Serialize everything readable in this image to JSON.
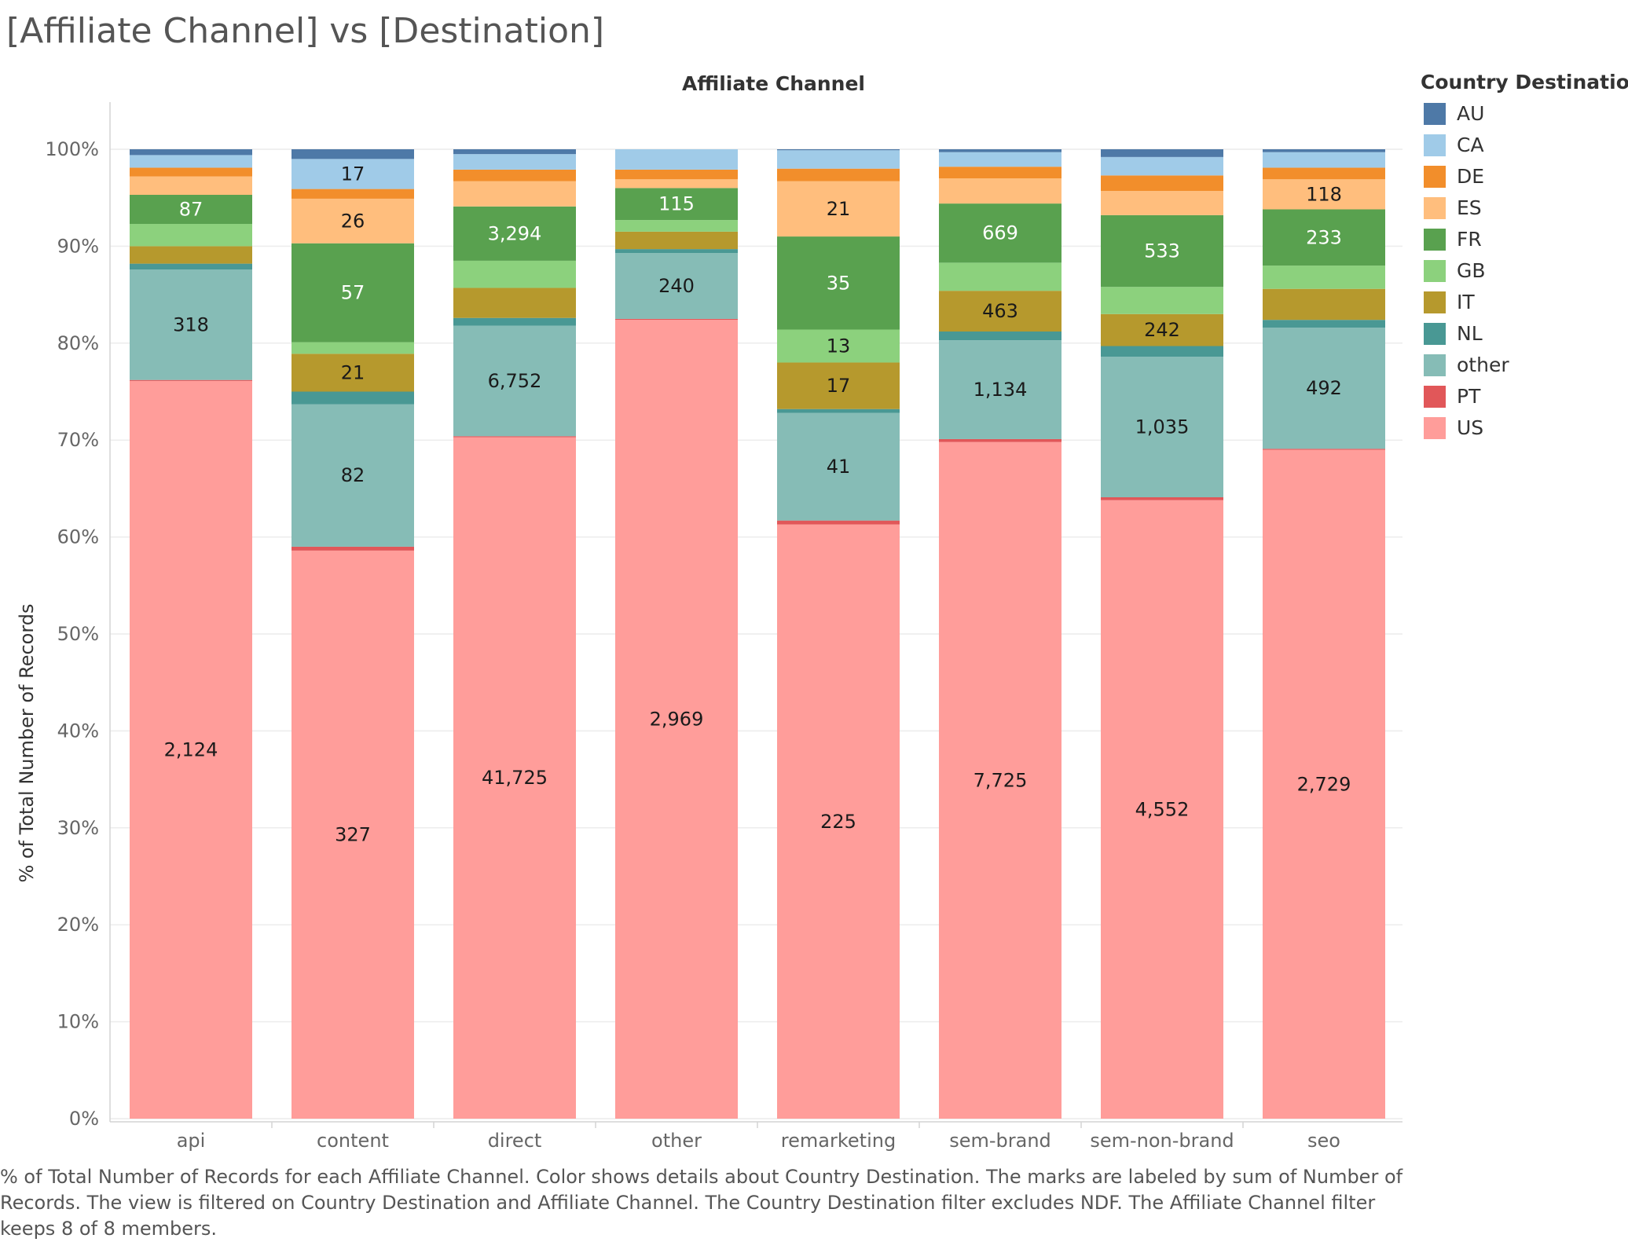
{
  "title": "[Affiliate Channel] vs [Destination]",
  "column_header": "Affiliate Channel",
  "legend": {
    "title": "Country Destination",
    "items": [
      {
        "label": "AU",
        "color": "#4e79a7"
      },
      {
        "label": "CA",
        "color": "#a0cbe8"
      },
      {
        "label": "DE",
        "color": "#f28e2b"
      },
      {
        "label": "ES",
        "color": "#ffbe7d"
      },
      {
        "label": "FR",
        "color": "#59a14f"
      },
      {
        "label": "GB",
        "color": "#8cd17d"
      },
      {
        "label": "IT",
        "color": "#b6992d"
      },
      {
        "label": "NL",
        "color": "#499894"
      },
      {
        "label": "other",
        "color": "#86bcb6"
      },
      {
        "label": "PT",
        "color": "#e15759"
      },
      {
        "label": "US",
        "color": "#ff9d9a"
      }
    ]
  },
  "caption": "% of Total Number of Records for each Affiliate Channel.  Color shows details about Country Destination.  The marks are labeled by sum of Number of Records. The view is filtered on Country Destination and Affiliate Channel. The Country Destination filter excludes NDF. The Affiliate Channel filter keeps 8 of 8 members.",
  "chart_data": {
    "type": "bar",
    "stacked": true,
    "normalized": true,
    "ylabel": "% of Total Number of Records",
    "xlabel": "",
    "ylim": [
      0,
      100
    ],
    "yticks": [
      "0%",
      "10%",
      "20%",
      "30%",
      "40%",
      "50%",
      "60%",
      "70%",
      "80%",
      "90%",
      "100%"
    ],
    "grid": true,
    "legend_position": "right",
    "categories": [
      "api",
      "content",
      "direct",
      "other",
      "remarketing",
      "sem-brand",
      "sem-non-brand",
      "seo"
    ],
    "series": [
      {
        "name": "US",
        "percent": [
          76.1,
          58.6,
          70.3,
          82.4,
          61.3,
          69.8,
          63.8,
          69.0
        ],
        "labels": [
          "2,124",
          "327",
          "41,725",
          "2,969",
          "225",
          "7,725",
          "4,552",
          "2,729"
        ]
      },
      {
        "name": "PT",
        "percent": [
          0.1,
          0.4,
          0.1,
          0.1,
          0.4,
          0.3,
          0.3,
          0.1
        ],
        "labels": [
          "",
          "",
          "",
          "",
          "",
          "",
          "",
          ""
        ]
      },
      {
        "name": "other",
        "percent": [
          11.4,
          14.7,
          11.4,
          6.8,
          11.1,
          10.2,
          14.5,
          12.5
        ],
        "labels": [
          "318",
          "82",
          "6,752",
          "240",
          "41",
          "1,134",
          "1,035",
          "492"
        ]
      },
      {
        "name": "NL",
        "percent": [
          0.6,
          1.3,
          0.8,
          0.4,
          0.4,
          0.9,
          1.1,
          0.8
        ],
        "labels": [
          "",
          "",
          "",
          "",
          "",
          "",
          "",
          ""
        ]
      },
      {
        "name": "IT",
        "percent": [
          1.8,
          3.9,
          3.1,
          1.8,
          4.8,
          4.2,
          3.3,
          3.2
        ],
        "labels": [
          "",
          "21",
          "",
          "",
          "17",
          "463",
          "242",
          ""
        ]
      },
      {
        "name": "GB",
        "percent": [
          2.3,
          1.2,
          2.8,
          1.2,
          3.4,
          2.9,
          2.8,
          2.4
        ],
        "labels": [
          "",
          "",
          "",
          "",
          "13",
          "",
          "",
          ""
        ]
      },
      {
        "name": "FR",
        "percent": [
          3.0,
          10.2,
          5.6,
          3.3,
          9.6,
          6.1,
          7.4,
          5.8
        ],
        "labels": [
          "87",
          "57",
          "3,294",
          "115",
          "35",
          "669",
          "533",
          "233"
        ]
      },
      {
        "name": "ES",
        "percent": [
          1.9,
          4.6,
          2.6,
          0.9,
          5.7,
          2.6,
          2.5,
          3.1
        ],
        "labels": [
          "",
          "26",
          "",
          "",
          "21",
          "",
          "",
          "118"
        ]
      },
      {
        "name": "DE",
        "percent": [
          0.9,
          1.0,
          1.2,
          1.0,
          1.3,
          1.2,
          1.6,
          1.2
        ],
        "labels": [
          "",
          "",
          "",
          "",
          "",
          "",
          "",
          ""
        ]
      },
      {
        "name": "CA",
        "percent": [
          1.3,
          3.1,
          1.6,
          2.1,
          1.9,
          1.5,
          1.9,
          1.6
        ],
        "labels": [
          "",
          "17",
          "",
          "",
          "",
          "",
          "",
          ""
        ]
      },
      {
        "name": "AU",
        "percent": [
          0.6,
          1.0,
          0.5,
          0.0,
          0.1,
          0.3,
          0.8,
          0.3
        ],
        "labels": [
          "",
          "",
          "",
          "",
          "",
          "",
          "",
          ""
        ]
      }
    ]
  }
}
